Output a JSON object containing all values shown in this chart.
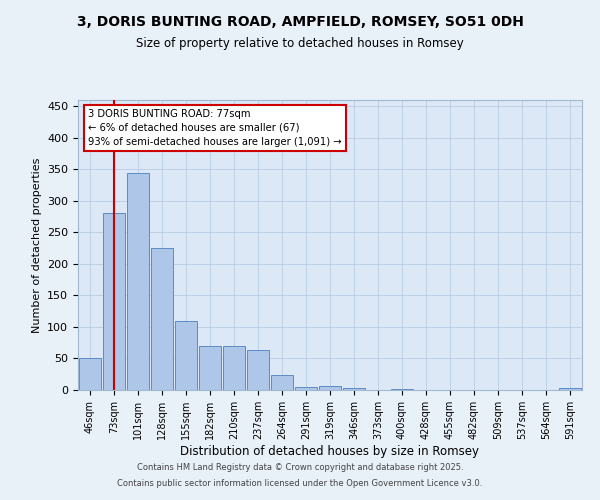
{
  "title": "3, DORIS BUNTING ROAD, AMPFIELD, ROMSEY, SO51 0DH",
  "subtitle": "Size of property relative to detached houses in Romsey",
  "xlabel": "Distribution of detached houses by size in Romsey",
  "ylabel": "Number of detached properties",
  "categories": [
    "46sqm",
    "73sqm",
    "101sqm",
    "128sqm",
    "155sqm",
    "182sqm",
    "210sqm",
    "237sqm",
    "264sqm",
    "291sqm",
    "319sqm",
    "346sqm",
    "373sqm",
    "400sqm",
    "428sqm",
    "455sqm",
    "482sqm",
    "509sqm",
    "537sqm",
    "564sqm",
    "591sqm"
  ],
  "values": [
    51,
    280,
    345,
    226,
    110,
    70,
    70,
    63,
    24,
    5,
    7,
    3,
    0,
    2,
    0,
    0,
    0,
    0,
    0,
    0,
    3
  ],
  "bar_color": "#aec6e8",
  "bar_edge_color": "#5b8cc8",
  "red_line_x": 1,
  "ylim": [
    0,
    460
  ],
  "yticks": [
    0,
    50,
    100,
    150,
    200,
    250,
    300,
    350,
    400,
    450
  ],
  "annotation_line1": "3 DORIS BUNTING ROAD: 77sqm",
  "annotation_line2": "← 6% of detached houses are smaller (67)",
  "annotation_line3": "93% of semi-detached houses are larger (1,091) →",
  "bg_color": "#dce8f5",
  "fig_bg_color": "#e8f0f8",
  "grid_color": "#b8cce4",
  "footer1": "Contains HM Land Registry data © Crown copyright and database right 2025.",
  "footer2": "Contains public sector information licensed under the Open Government Licence v3.0."
}
